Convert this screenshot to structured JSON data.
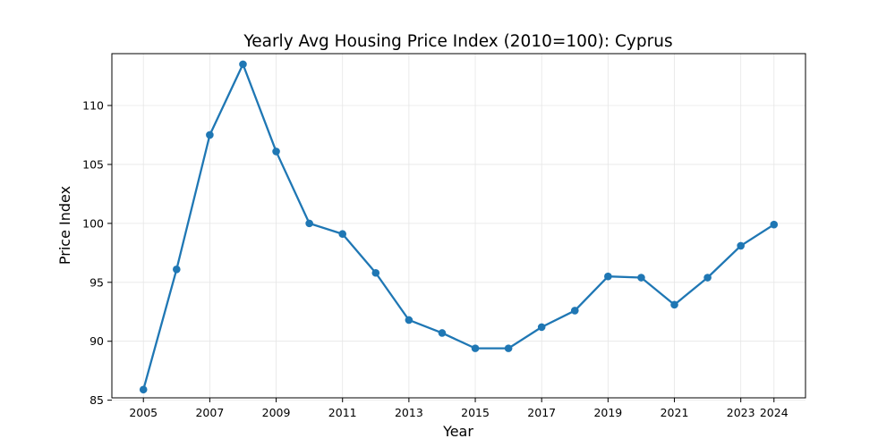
{
  "chart_data": {
    "type": "line",
    "title": "Yearly Avg Housing Price Index (2010=100): Cyprus",
    "xlabel": "Year",
    "ylabel": "Price Index",
    "x": [
      2005,
      2006,
      2007,
      2008,
      2009,
      2010,
      2011,
      2012,
      2013,
      2014,
      2015,
      2016,
      2017,
      2018,
      2019,
      2020,
      2021,
      2022,
      2023,
      2024
    ],
    "series": [
      {
        "values": [
          85.9,
          96.1,
          107.5,
          113.5,
          106.1,
          100.0,
          99.1,
          95.8,
          91.8,
          90.7,
          89.4,
          89.4,
          91.2,
          92.6,
          95.5,
          95.4,
          93.1,
          95.4,
          98.1,
          99.9
        ],
        "color": "#1f77b4"
      }
    ],
    "x_ticks": [
      2005,
      2007,
      2009,
      2011,
      2013,
      2015,
      2017,
      2019,
      2021,
      2023,
      2024
    ],
    "y_ticks": [
      85,
      90,
      95,
      100,
      105,
      110
    ],
    "xlim": [
      2004.05,
      2024.95
    ],
    "ylim": [
      85.2,
      114.4
    ],
    "grid": true,
    "legend": "none",
    "colors": {
      "line": "#1f77b4",
      "grid": "#e6e6e6",
      "axes": "#000000"
    }
  }
}
